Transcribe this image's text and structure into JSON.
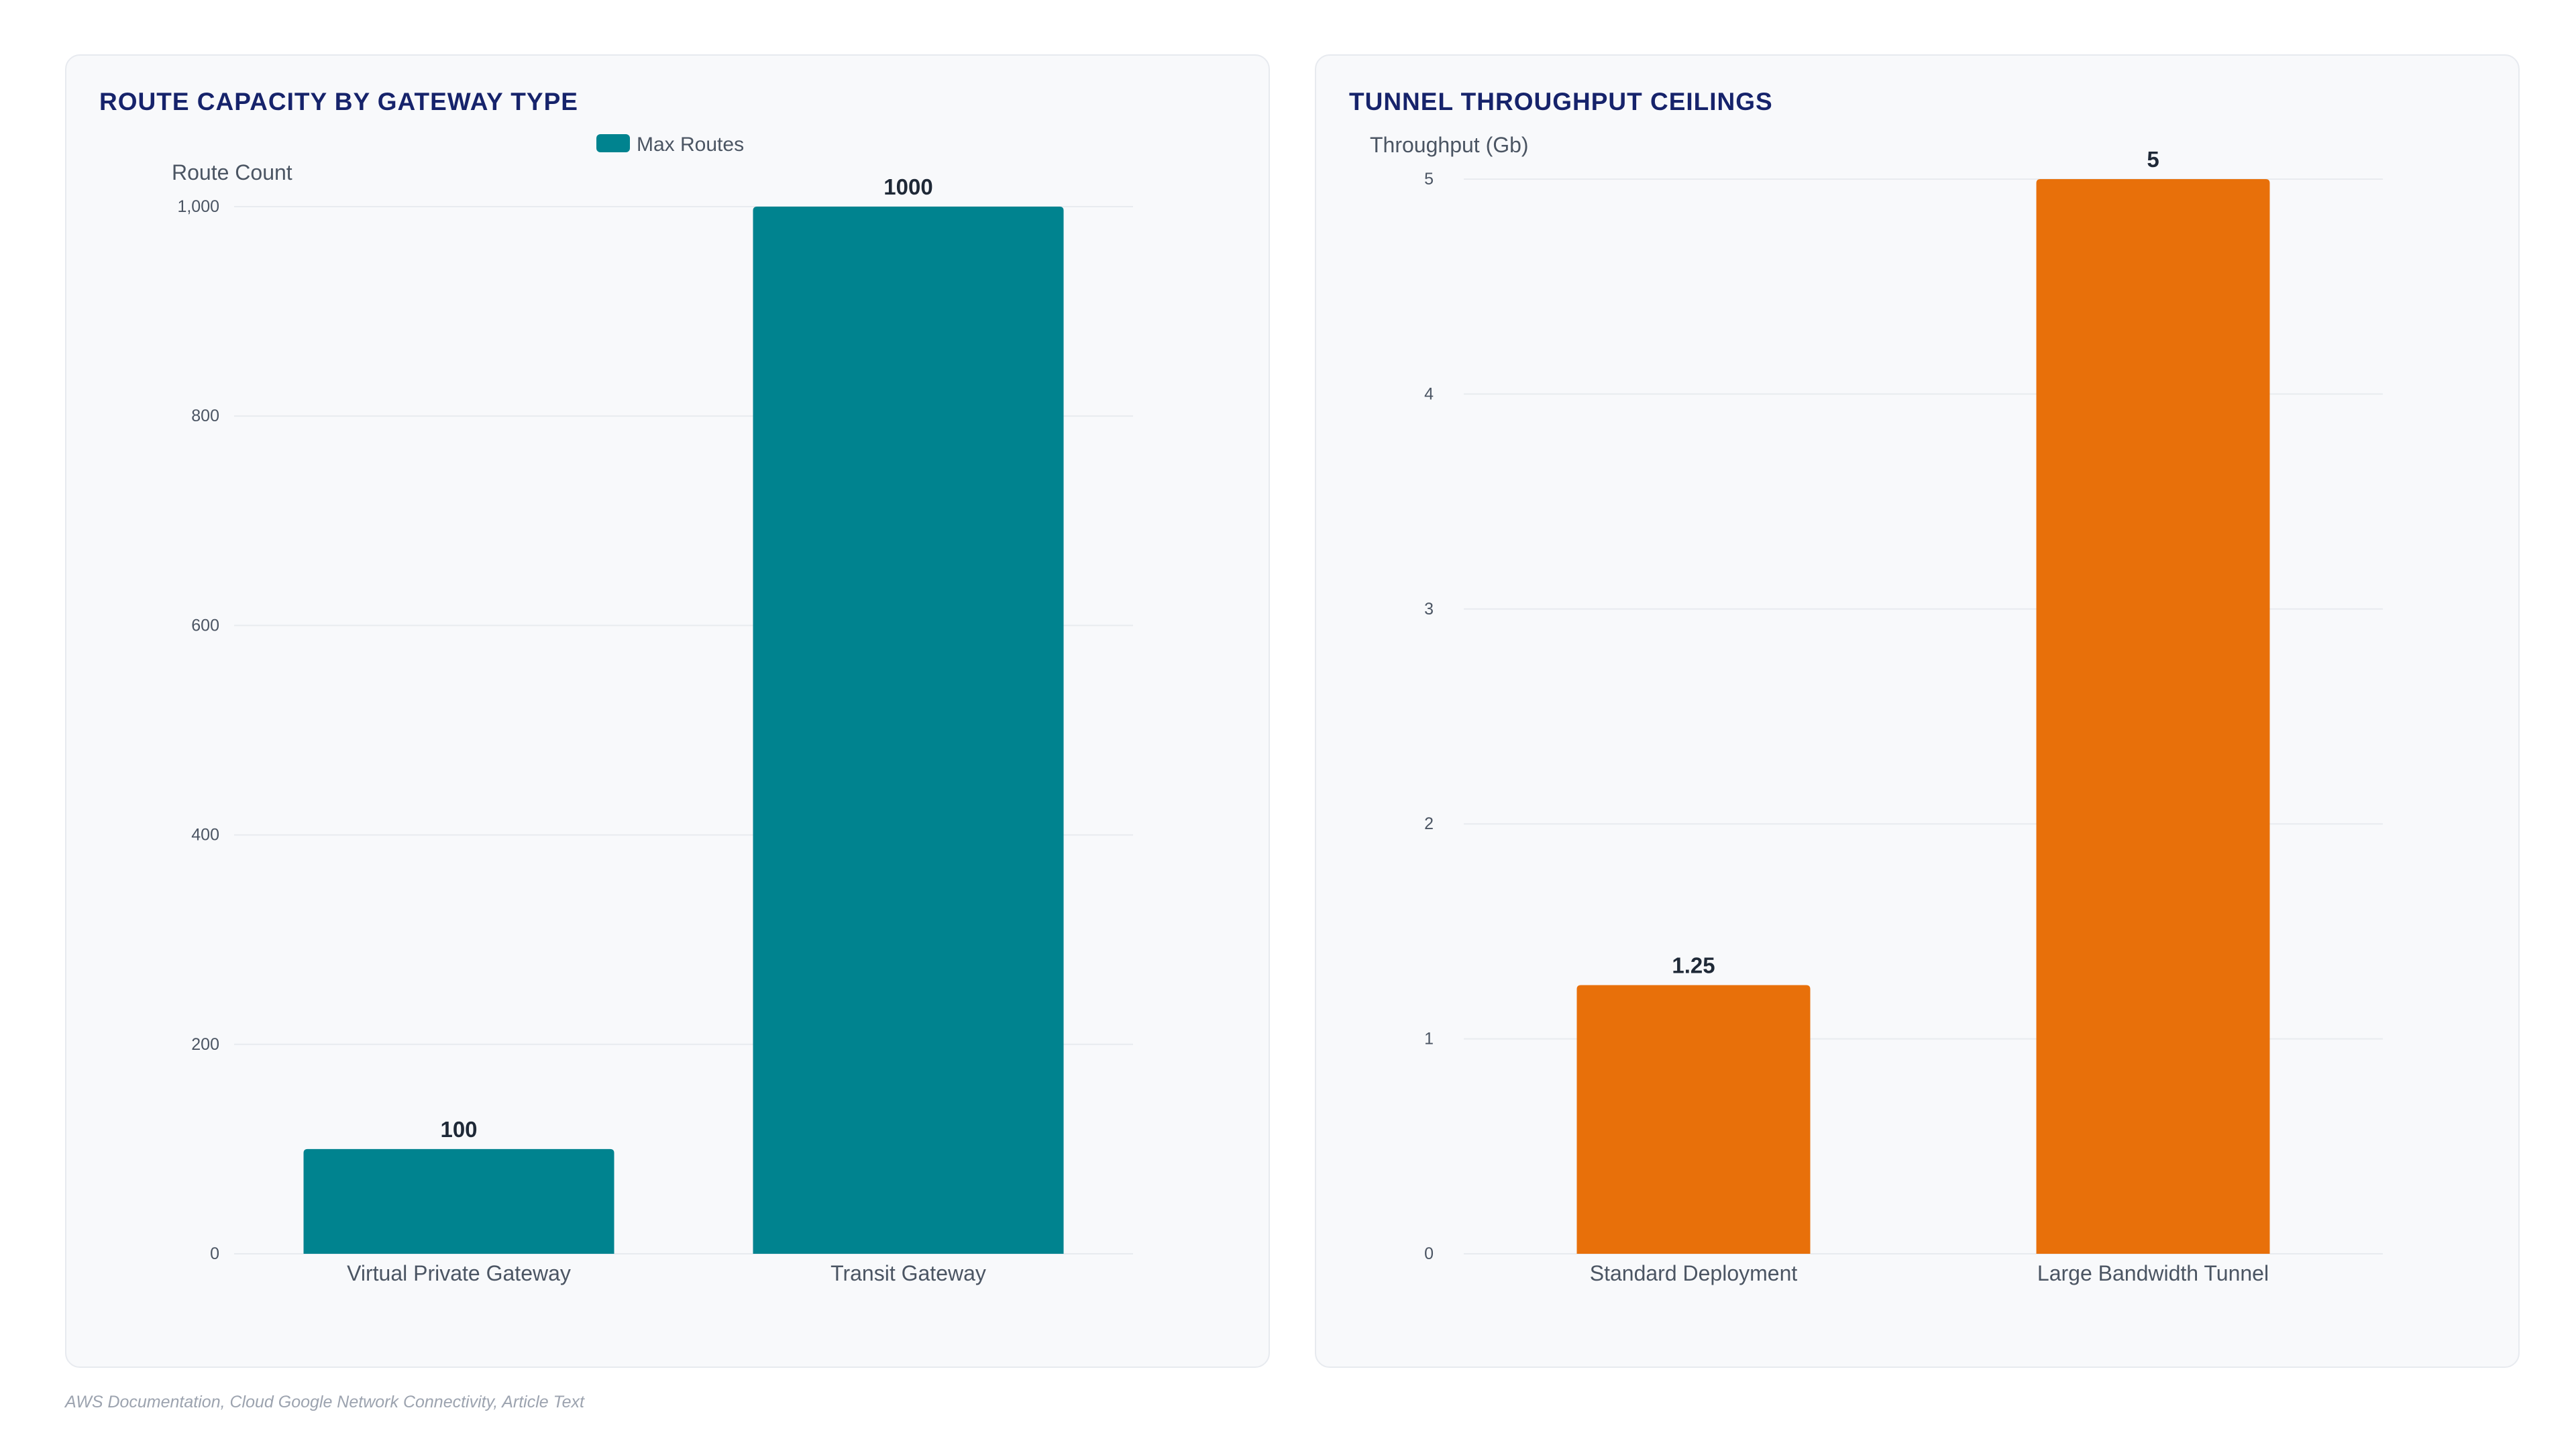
{
  "footer": {
    "source": "AWS Documentation, Cloud Google Network Connectivity, Article Text"
  },
  "chart_data": [
    {
      "type": "bar",
      "title": "ROUTE CAPACITY BY GATEWAY TYPE",
      "categories": [
        "Virtual Private Gateway",
        "Transit Gateway"
      ],
      "series": [
        {
          "name": "Max Routes",
          "values": [
            100,
            1000
          ],
          "color": "#00838f"
        }
      ],
      "value_labels": [
        "100",
        "1000"
      ],
      "xlabel": "",
      "ylabel": "Route Count",
      "ylim": [
        0,
        1000
      ],
      "yticks": [
        0,
        200,
        400,
        600,
        800,
        1000
      ],
      "ytick_labels": [
        "0",
        "200",
        "400",
        "600",
        "800",
        "1,000"
      ],
      "legend": "top-center",
      "grid": true
    },
    {
      "type": "bar",
      "title": "TUNNEL THROUGHPUT CEILINGS",
      "categories": [
        "Standard Deployment",
        "Large Bandwidth Tunnel"
      ],
      "series": [
        {
          "values": [
            1.25,
            5
          ],
          "color": "#e8700a"
        }
      ],
      "value_labels": [
        "1.25",
        "5"
      ],
      "xlabel": "",
      "ylabel": "Throughput (Gb)",
      "ylim": [
        0,
        5
      ],
      "yticks": [
        0,
        1,
        2,
        3,
        4,
        5
      ],
      "ytick_labels": [
        "0",
        "1",
        "2",
        "3",
        "4",
        "5"
      ],
      "legend": "none",
      "grid": true
    }
  ]
}
